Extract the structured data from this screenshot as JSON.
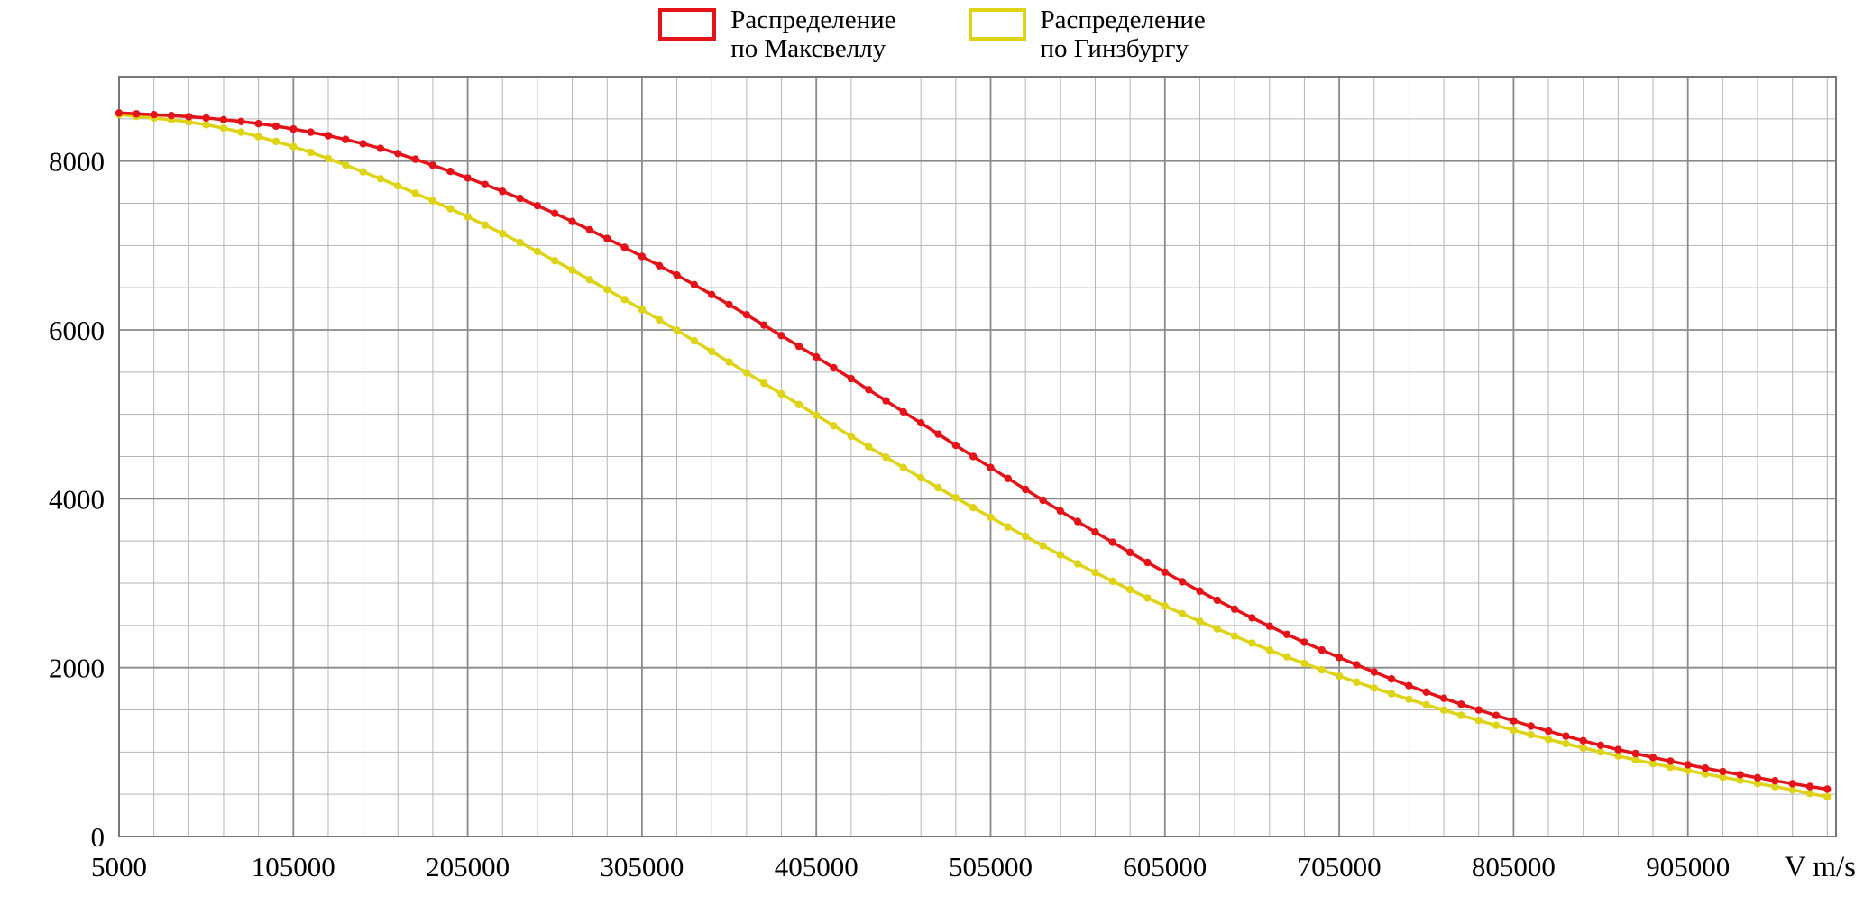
{
  "chart_data": {
    "type": "line",
    "title": "",
    "xlabel": "V m/s",
    "ylabel": "",
    "x_range": [
      5000,
      990000
    ],
    "y_range": [
      0,
      9000
    ],
    "x_ticks": [
      5000,
      105000,
      205000,
      305000,
      405000,
      505000,
      605000,
      705000,
      805000,
      905000
    ],
    "y_ticks": [
      0,
      2000,
      4000,
      6000,
      8000
    ],
    "x_minor_step": 20000,
    "y_minor_step": 500,
    "marker_step": 10000,
    "data_xmax": 985000,
    "grid": true,
    "legend_position": "top-center",
    "colors": {
      "grid_minor": "#b5b5b5",
      "grid_major": "#8a8a8a",
      "axis": "#777777",
      "text": "#000000"
    },
    "series": [
      {
        "id": "maxwell",
        "name": "Распределение по Максвеллу",
        "color": "#e41219",
        "x": [
          5000,
          55000,
          105000,
          155000,
          205000,
          255000,
          305000,
          355000,
          405000,
          455000,
          505000,
          555000,
          605000,
          655000,
          705000,
          755000,
          805000,
          855000,
          905000,
          955000,
          985000
        ],
        "values": [
          8570,
          8510,
          8380,
          8150,
          7800,
          7380,
          6870,
          6300,
          5680,
          5030,
          4370,
          3730,
          3130,
          2590,
          2120,
          1710,
          1370,
          1080,
          850,
          660,
          560
        ]
      },
      {
        "id": "ginzburg",
        "name": "Распределение по Гинзбургу",
        "color": "#ded315",
        "x": [
          5000,
          55000,
          105000,
          155000,
          205000,
          255000,
          305000,
          355000,
          405000,
          455000,
          505000,
          555000,
          605000,
          655000,
          705000,
          755000,
          805000,
          855000,
          905000,
          955000,
          985000
        ],
        "values": [
          8550,
          8430,
          8170,
          7790,
          7340,
          6820,
          6240,
          5620,
          4990,
          4370,
          3780,
          3230,
          2730,
          2290,
          1900,
          1560,
          1260,
          1000,
          780,
          590,
          470
        ]
      }
    ]
  },
  "legend": {
    "items": [
      {
        "line1": "Распределение",
        "line2": "по Максвеллу",
        "color": "#e41219"
      },
      {
        "line1": "Распределение",
        "line2": "по Гинзбургу",
        "color": "#ded315"
      }
    ]
  }
}
